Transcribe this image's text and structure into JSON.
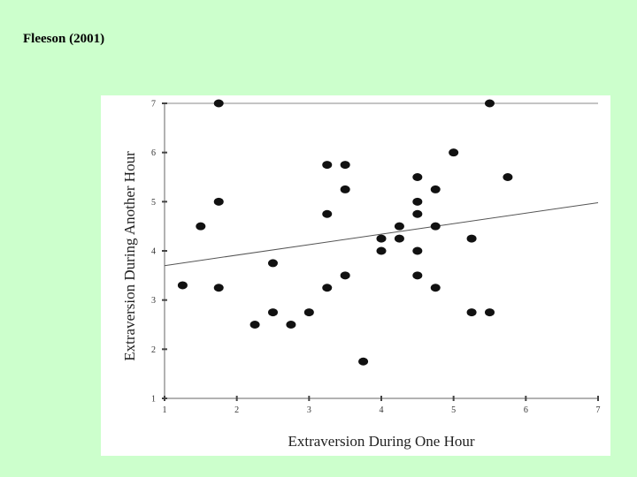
{
  "slide": {
    "title": "Fleeson (2001)"
  },
  "chart_data": {
    "type": "scatter",
    "title": "",
    "xlabel": "Extraversion During One Hour",
    "ylabel": "Extraversion During Another Hour",
    "xlim": [
      1,
      7
    ],
    "ylim": [
      1,
      7
    ],
    "xticks": [
      1,
      2,
      3,
      4,
      5,
      6,
      7
    ],
    "yticks": [
      1,
      2,
      3,
      4,
      5,
      6,
      7
    ],
    "grid": false,
    "points": [
      [
        1.25,
        3.3
      ],
      [
        1.5,
        4.5
      ],
      [
        1.75,
        7
      ],
      [
        1.75,
        5
      ],
      [
        1.75,
        3.25
      ],
      [
        2.25,
        2.5
      ],
      [
        2.5,
        3.75
      ],
      [
        2.5,
        2.75
      ],
      [
        2.75,
        2.5
      ],
      [
        3.0,
        2.75
      ],
      [
        3.25,
        5.75
      ],
      [
        3.25,
        4.75
      ],
      [
        3.25,
        3.25
      ],
      [
        3.5,
        5.75
      ],
      [
        3.5,
        5.25
      ],
      [
        3.5,
        3.5
      ],
      [
        3.75,
        1.75
      ],
      [
        4.0,
        4.25
      ],
      [
        4.0,
        4.0
      ],
      [
        4.25,
        4.5
      ],
      [
        4.25,
        4.25
      ],
      [
        4.5,
        5.5
      ],
      [
        4.5,
        5.0
      ],
      [
        4.5,
        4.75
      ],
      [
        4.5,
        4.0
      ],
      [
        4.5,
        3.5
      ],
      [
        4.75,
        5.25
      ],
      [
        4.75,
        4.5
      ],
      [
        4.75,
        3.25
      ],
      [
        5.0,
        6.0
      ],
      [
        5.25,
        4.25
      ],
      [
        5.25,
        2.75
      ],
      [
        5.5,
        7
      ],
      [
        5.5,
        2.75
      ],
      [
        5.75,
        5.5
      ]
    ],
    "regression_line": {
      "x": [
        1,
        7
      ],
      "y": [
        3.7,
        4.98
      ]
    }
  }
}
